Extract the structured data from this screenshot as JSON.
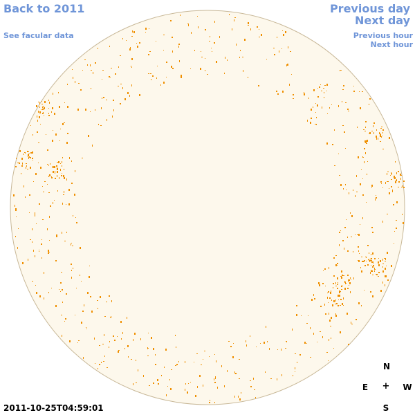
{
  "nav": {
    "back_label": "Back to 2011",
    "facular_label": "See facular data",
    "previous_day_label": "Previous day",
    "next_day_label": "Next day",
    "previous_hour_label": "Previous hour",
    "next_hour_label": "Next hour"
  },
  "compass": {
    "north": "N",
    "south": "S",
    "east": "E",
    "west": "W",
    "center": "+"
  },
  "timestamp": "2011-10-25T04:59:01",
  "colors": {
    "link": "#6f95d8",
    "disk_fill": "#fdf8ec",
    "disk_edge": "#c8b898",
    "magnetic_feature": "#ef8f00"
  }
}
